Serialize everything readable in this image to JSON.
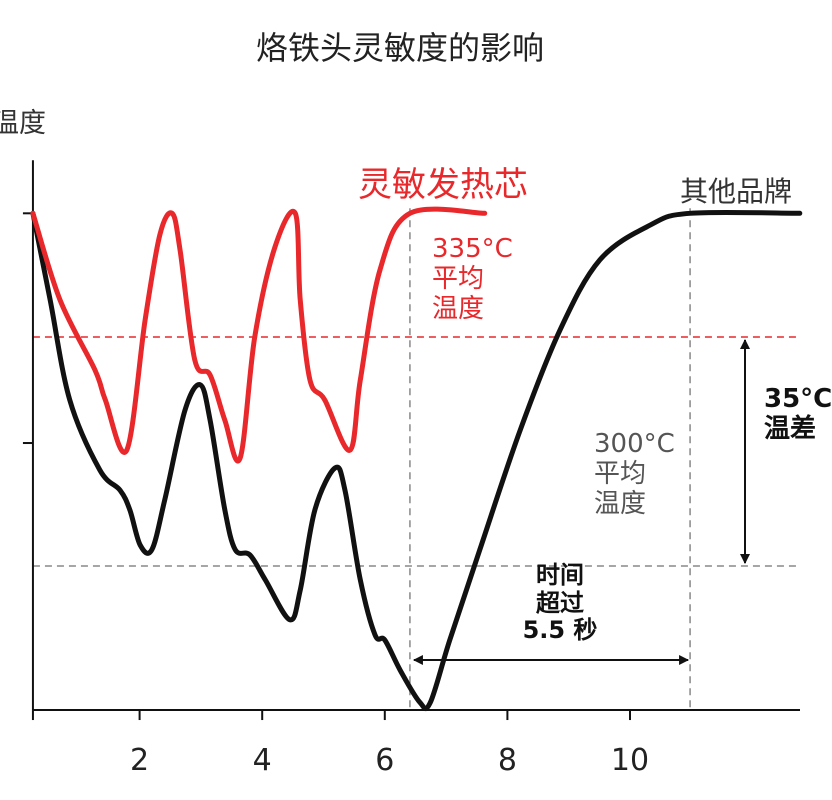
{
  "chart_data": {
    "type": "line",
    "title": "烙铁头灵敏度的影响",
    "ylabel": "温度",
    "xlabel": "",
    "xlim": [
      0.26,
      12.77
    ],
    "ylim": [
      278,
      362
    ],
    "x_ticks": [
      2,
      4,
      6,
      8,
      10
    ],
    "x_tick_labels": [
      "2",
      "4",
      "6",
      "8",
      "10"
    ],
    "y_ticks": [
      353.9,
      318.8
    ],
    "grid": false,
    "colors": {
      "red": "#e8282b",
      "black": "#111111",
      "dash_red": "#e8282b",
      "dash_gray": "#888888"
    },
    "series": [
      {
        "name": "灵敏发热芯",
        "color": "#e8282b",
        "x": [
          0.26,
          0.7,
          1.27,
          1.44,
          1.79,
          2.09,
          2.33,
          2.53,
          2.66,
          2.9,
          3.15,
          3.39,
          3.64,
          3.88,
          4.21,
          4.54,
          4.62,
          4.78,
          5.02,
          5.43,
          5.6,
          5.92,
          6.41,
          7.63
        ],
        "y": [
          353.9,
          340.7,
          330.0,
          325.4,
          317.7,
          337.6,
          350.6,
          353.9,
          348.3,
          331.5,
          329.2,
          322.3,
          316.5,
          335.1,
          348.8,
          353.9,
          340.7,
          328.4,
          325.4,
          317.7,
          328.4,
          345.2,
          353.9,
          353.9
        ]
      },
      {
        "name": "其他品牌",
        "color": "#111111",
        "x": [
          0.26,
          0.54,
          0.86,
          1.35,
          1.68,
          1.84,
          2.01,
          2.2,
          2.41,
          2.74,
          2.99,
          3.15,
          3.39,
          3.56,
          3.8,
          4.05,
          4.45,
          4.62,
          4.86,
          5.19,
          5.35,
          5.6,
          5.84,
          6.0,
          6.25,
          6.57,
          6.74,
          7.06,
          7.55,
          8.21,
          8.86,
          9.51,
          10.33,
          10.98,
          12.77
        ],
        "y": [
          353.9,
          340.7,
          325.4,
          314.7,
          311.6,
          308.6,
          303.2,
          302.5,
          310.1,
          323.8,
          327.7,
          322.3,
          308.6,
          302.5,
          301.7,
          297.9,
          291.8,
          296.3,
          308.6,
          315.0,
          311.6,
          297.9,
          289.5,
          288.7,
          284.1,
          279.2,
          279.1,
          288.7,
          302.5,
          320.8,
          336.1,
          346.8,
          352.1,
          353.9,
          353.9
        ]
      }
    ],
    "reference_lines": [
      {
        "axis": "y",
        "value": 335,
        "color": "#e8282b",
        "style": "dashed"
      },
      {
        "axis": "y",
        "value": 300,
        "color": "#888888",
        "style": "dashed"
      },
      {
        "axis": "x",
        "value": 6.41,
        "color": "#888888",
        "style": "dashed"
      },
      {
        "axis": "x",
        "value": 10.98,
        "color": "#888888",
        "style": "dashed"
      }
    ],
    "annotations": {
      "red_series_label": "灵敏发热芯",
      "red_avg": [
        "335°C",
        "平均",
        "温度"
      ],
      "black_series_label": "其他品牌",
      "black_avg": [
        "300°C",
        "平均",
        "温度"
      ],
      "time_note": [
        "时间",
        "超过",
        "5.5 秒"
      ],
      "diff_note": [
        "35°C",
        "温差"
      ],
      "time_arrow": [
        6.41,
        10.98
      ],
      "temp_arrow": [
        300,
        335
      ]
    }
  }
}
